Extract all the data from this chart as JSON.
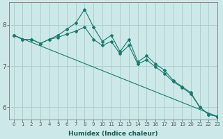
{
  "xlabel": "Humidex (Indice chaleur)",
  "bg_color": "#cce8e8",
  "grid_color": "#aacccc",
  "line_color": "#1a7a6e",
  "xlim": [
    -0.5,
    23
  ],
  "ylim": [
    5.7,
    8.55
  ],
  "yticks": [
    6,
    7,
    8
  ],
  "xticks": [
    0,
    1,
    2,
    3,
    4,
    5,
    6,
    7,
    8,
    9,
    10,
    11,
    12,
    13,
    14,
    15,
    16,
    17,
    18,
    19,
    20,
    21,
    22,
    23
  ],
  "series1_x": [
    0,
    1,
    2,
    3,
    4,
    5,
    6,
    7,
    8,
    9,
    10,
    11,
    12,
    13,
    14,
    15,
    16,
    17,
    18,
    19,
    20,
    21,
    22,
    23
  ],
  "series1_y": [
    7.75,
    7.65,
    7.65,
    7.55,
    7.65,
    7.75,
    7.9,
    8.05,
    8.38,
    7.95,
    7.6,
    7.75,
    7.35,
    7.65,
    7.1,
    7.25,
    7.05,
    6.9,
    6.65,
    6.5,
    6.35,
    6.0,
    5.82,
    5.77
  ],
  "series2_x": [
    0,
    1,
    2,
    3,
    4,
    5,
    6,
    7,
    8,
    9,
    10,
    11,
    12,
    13,
    14,
    15,
    16,
    17,
    18,
    19,
    20,
    21,
    22,
    23
  ],
  "series2_y": [
    7.75,
    7.65,
    7.65,
    7.55,
    7.65,
    7.7,
    7.78,
    7.85,
    7.95,
    7.65,
    7.5,
    7.6,
    7.3,
    7.5,
    7.05,
    7.15,
    6.98,
    6.82,
    6.62,
    6.48,
    6.32,
    6.0,
    5.82,
    5.77
  ],
  "series3_x": [
    0,
    23
  ],
  "series3_y": [
    7.75,
    5.77
  ],
  "marker_size": 2.0,
  "line_width": 0.8,
  "xlabel_fontsize": 6.5,
  "xlabel_color": "#1a5a5a",
  "xlabel_bold": true,
  "ytick_fontsize": 6.5,
  "xtick_fontsize": 5.0,
  "spine_color": "#888888"
}
